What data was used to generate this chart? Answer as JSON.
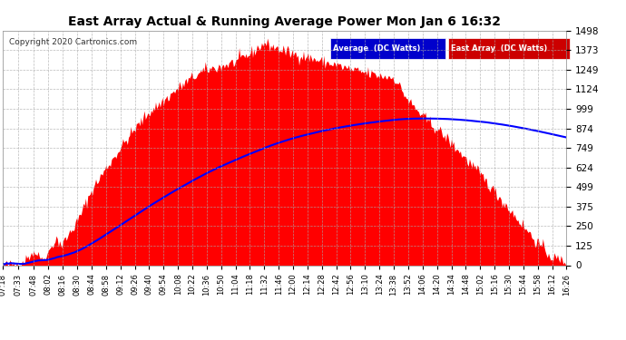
{
  "title": "East Array Actual & Running Average Power Mon Jan 6 16:32",
  "copyright": "Copyright 2020 Cartronics.com",
  "bg_color": "#ffffff",
  "plot_bg_color": "#ffffff",
  "grid_color": "#aaaaaa",
  "fill_color": "#ff0000",
  "line_color": "#0000ff",
  "title_color": "#000000",
  "tick_color": "#000000",
  "legend_avg_bg": "#0000cc",
  "legend_east_bg": "#cc0000",
  "legend_text_color": "#ffffff",
  "ymax": 1498.3,
  "ymin": 0.0,
  "yticks": [
    0.0,
    124.9,
    249.7,
    374.6,
    499.4,
    624.3,
    749.1,
    874.0,
    998.9,
    1123.7,
    1248.6,
    1373.4,
    1498.3
  ],
  "xtick_labels": [
    "07:18",
    "07:33",
    "07:48",
    "08:02",
    "08:16",
    "08:30",
    "08:44",
    "08:58",
    "09:12",
    "09:26",
    "09:40",
    "09:54",
    "10:08",
    "10:22",
    "10:36",
    "10:50",
    "11:04",
    "11:18",
    "11:32",
    "11:46",
    "12:00",
    "12:14",
    "12:28",
    "12:42",
    "12:56",
    "13:10",
    "13:24",
    "13:38",
    "13:52",
    "14:06",
    "14:20",
    "14:34",
    "14:48",
    "15:02",
    "15:16",
    "15:30",
    "15:44",
    "15:58",
    "16:12",
    "16:26"
  ]
}
